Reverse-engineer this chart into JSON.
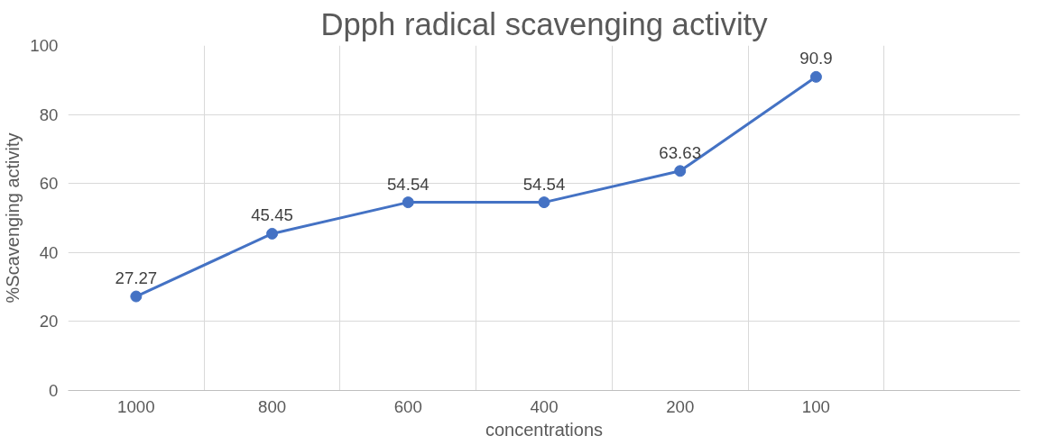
{
  "chart_data": {
    "type": "line",
    "title": "Dpph radical scavenging activity",
    "xlabel": "concentrations",
    "ylabel": "%Scavenging activity",
    "categories": [
      "1000",
      "800",
      "600",
      "400",
      "200",
      "100",
      null
    ],
    "series": [
      {
        "color": "#4472c4",
        "values": [
          27.27,
          45.45,
          54.54,
          54.54,
          63.63,
          90.9,
          null
        ]
      }
    ],
    "ylim": [
      0,
      100
    ],
    "yticks": [
      0,
      20,
      40,
      60,
      80,
      100
    ],
    "grid": true,
    "marker": "circle",
    "line_style": "solid",
    "data_labels": true
  }
}
